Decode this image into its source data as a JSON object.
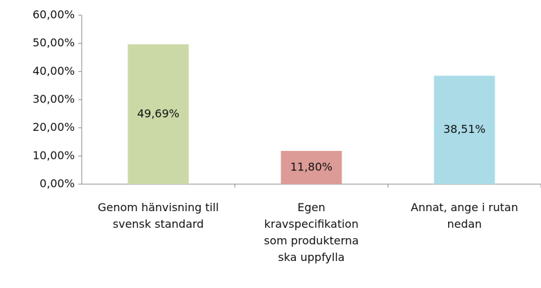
{
  "chart_data": {
    "type": "bar",
    "categories": [
      "Genom hänvisning till svensk standard",
      "Egen kravspecifikation som produkterna ska uppfylla",
      "Annat, ange i rutan nedan"
    ],
    "values": [
      49.69,
      11.8,
      38.51
    ],
    "value_labels": [
      "49,69%",
      "11,80%",
      "38,51%"
    ],
    "colors": [
      "#cbd9a7",
      "#dd9b97",
      "#aadbe7"
    ],
    "ylim": [
      0,
      60
    ],
    "yticks": [
      {
        "value": 0,
        "label": "0,00%"
      },
      {
        "value": 10,
        "label": "10,00%"
      },
      {
        "value": 20,
        "label": "20,00%"
      },
      {
        "value": 30,
        "label": "30,00%"
      },
      {
        "value": 40,
        "label": "40,00%"
      },
      {
        "value": 50,
        "label": "50,00%"
      },
      {
        "value": 60,
        "label": "60,00%"
      }
    ]
  }
}
